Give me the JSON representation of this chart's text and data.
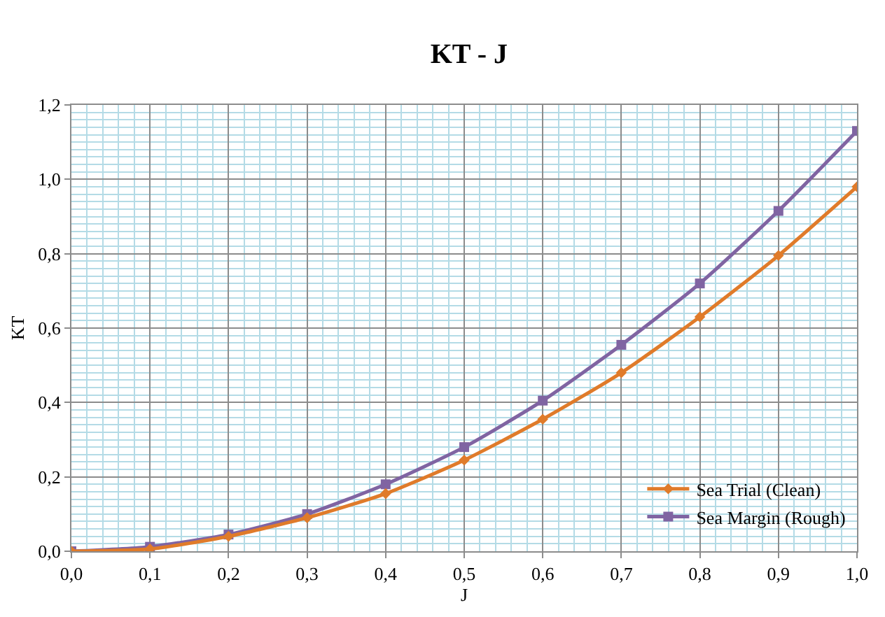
{
  "chart_data": {
    "type": "line",
    "title": "KT - J",
    "xlabel": "J",
    "ylabel": "KT",
    "x": [
      0.0,
      0.1,
      0.2,
      0.3,
      0.4,
      0.5,
      0.6,
      0.7,
      0.8,
      0.9,
      1.0
    ],
    "series": [
      {
        "name": "Sea Trial (Clean)",
        "color": "#e07b2a",
        "marker": "diamond",
        "values": [
          0.0,
          0.006,
          0.04,
          0.09,
          0.155,
          0.245,
          0.355,
          0.48,
          0.63,
          0.795,
          0.98
        ]
      },
      {
        "name": "Sea Margin (Rough)",
        "color": "#8064a2",
        "marker": "square",
        "values": [
          0.0,
          0.012,
          0.045,
          0.1,
          0.18,
          0.28,
          0.405,
          0.555,
          0.72,
          0.915,
          1.13
        ]
      }
    ],
    "xlim": [
      0.0,
      1.0
    ],
    "ylim": [
      0.0,
      1.2
    ],
    "xticks": [
      {
        "value": 0.0,
        "label": "0,0"
      },
      {
        "value": 0.1,
        "label": "0,1"
      },
      {
        "value": 0.2,
        "label": "0,2"
      },
      {
        "value": 0.3,
        "label": "0,3"
      },
      {
        "value": 0.4,
        "label": "0,4"
      },
      {
        "value": 0.5,
        "label": "0,5"
      },
      {
        "value": 0.6,
        "label": "0,6"
      },
      {
        "value": 0.7,
        "label": "0,7"
      },
      {
        "value": 0.8,
        "label": "0,8"
      },
      {
        "value": 0.9,
        "label": "0,9"
      },
      {
        "value": 1.0,
        "label": "1,0"
      },
      {
        "value": 0.02,
        "label": null
      },
      {
        "value": 0.04,
        "label": null
      },
      {
        "value": 0.06,
        "label": null
      },
      {
        "value": 0.08,
        "label": null
      },
      {
        "value": 0.12,
        "label": null
      },
      {
        "value": 0.14,
        "label": null
      },
      {
        "value": 0.16,
        "label": null
      },
      {
        "value": 0.18,
        "label": null
      },
      {
        "value": 0.22,
        "label": null
      },
      {
        "value": 0.24,
        "label": null
      },
      {
        "value": 0.26,
        "label": null
      },
      {
        "value": 0.28,
        "label": null
      },
      {
        "value": 0.32,
        "label": null
      },
      {
        "value": 0.34,
        "label": null
      },
      {
        "value": 0.36,
        "label": null
      },
      {
        "value": 0.38,
        "label": null
      },
      {
        "value": 0.42,
        "label": null
      },
      {
        "value": 0.44,
        "label": null
      },
      {
        "value": 0.46,
        "label": null
      },
      {
        "value": 0.48,
        "label": null
      },
      {
        "value": 0.52,
        "label": null
      },
      {
        "value": 0.54,
        "label": null
      },
      {
        "value": 0.56,
        "label": null
      },
      {
        "value": 0.58,
        "label": null
      },
      {
        "value": 0.62,
        "label": null
      },
      {
        "value": 0.64,
        "label": null
      },
      {
        "value": 0.66,
        "label": null
      },
      {
        "value": 0.68,
        "label": null
      },
      {
        "value": 0.72,
        "label": null
      },
      {
        "value": 0.74,
        "label": null
      },
      {
        "value": 0.76,
        "label": null
      },
      {
        "value": 0.78,
        "label": null
      },
      {
        "value": 0.82,
        "label": null
      },
      {
        "value": 0.84,
        "label": null
      },
      {
        "value": 0.86,
        "label": null
      },
      {
        "value": 0.88,
        "label": null
      },
      {
        "value": 0.92,
        "label": null
      },
      {
        "value": 0.94,
        "label": null
      },
      {
        "value": 0.96,
        "label": null
      },
      {
        "value": 0.98,
        "label": null
      }
    ],
    "yticks": [
      {
        "value": 0.0,
        "label": "0,0"
      },
      {
        "value": 0.2,
        "label": "0,2"
      },
      {
        "value": 0.4,
        "label": "0,4"
      },
      {
        "value": 0.6,
        "label": "0,6"
      },
      {
        "value": 0.8,
        "label": "0,8"
      },
      {
        "value": 1.0,
        "label": "1,0"
      },
      {
        "value": 1.2,
        "label": "1,2"
      },
      {
        "value": 0.02,
        "label": null
      },
      {
        "value": 0.04,
        "label": null
      },
      {
        "value": 0.06,
        "label": null
      },
      {
        "value": 0.08,
        "label": null
      },
      {
        "value": 0.1,
        "label": null
      },
      {
        "value": 0.12,
        "label": null
      },
      {
        "value": 0.14,
        "label": null
      },
      {
        "value": 0.16,
        "label": null
      },
      {
        "value": 0.18,
        "label": null
      },
      {
        "value": 0.22,
        "label": null
      },
      {
        "value": 0.24,
        "label": null
      },
      {
        "value": 0.26,
        "label": null
      },
      {
        "value": 0.28,
        "label": null
      },
      {
        "value": 0.3,
        "label": null
      },
      {
        "value": 0.32,
        "label": null
      },
      {
        "value": 0.34,
        "label": null
      },
      {
        "value": 0.36,
        "label": null
      },
      {
        "value": 0.38,
        "label": null
      },
      {
        "value": 0.42,
        "label": null
      },
      {
        "value": 0.44,
        "label": null
      },
      {
        "value": 0.46,
        "label": null
      },
      {
        "value": 0.48,
        "label": null
      },
      {
        "value": 0.5,
        "label": null
      },
      {
        "value": 0.52,
        "label": null
      },
      {
        "value": 0.54,
        "label": null
      },
      {
        "value": 0.56,
        "label": null
      },
      {
        "value": 0.58,
        "label": null
      },
      {
        "value": 0.62,
        "label": null
      },
      {
        "value": 0.64,
        "label": null
      },
      {
        "value": 0.66,
        "label": null
      },
      {
        "value": 0.68,
        "label": null
      },
      {
        "value": 0.7,
        "label": null
      },
      {
        "value": 0.72,
        "label": null
      },
      {
        "value": 0.74,
        "label": null
      },
      {
        "value": 0.76,
        "label": null
      },
      {
        "value": 0.78,
        "label": null
      },
      {
        "value": 0.82,
        "label": null
      },
      {
        "value": 0.84,
        "label": null
      },
      {
        "value": 0.86,
        "label": null
      },
      {
        "value": 0.88,
        "label": null
      },
      {
        "value": 0.9,
        "label": null
      },
      {
        "value": 0.92,
        "label": null
      },
      {
        "value": 0.94,
        "label": null
      },
      {
        "value": 0.96,
        "label": null
      },
      {
        "value": 0.98,
        "label": null
      },
      {
        "value": 1.02,
        "label": null
      },
      {
        "value": 1.04,
        "label": null
      },
      {
        "value": 1.06,
        "label": null
      },
      {
        "value": 1.08,
        "label": null
      },
      {
        "value": 1.1,
        "label": null
      },
      {
        "value": 1.12,
        "label": null
      },
      {
        "value": 1.14,
        "label": null
      },
      {
        "value": 1.16,
        "label": null
      },
      {
        "value": 1.18,
        "label": null
      }
    ],
    "grid": true,
    "legend": "bottom right",
    "line_style": "solid"
  }
}
